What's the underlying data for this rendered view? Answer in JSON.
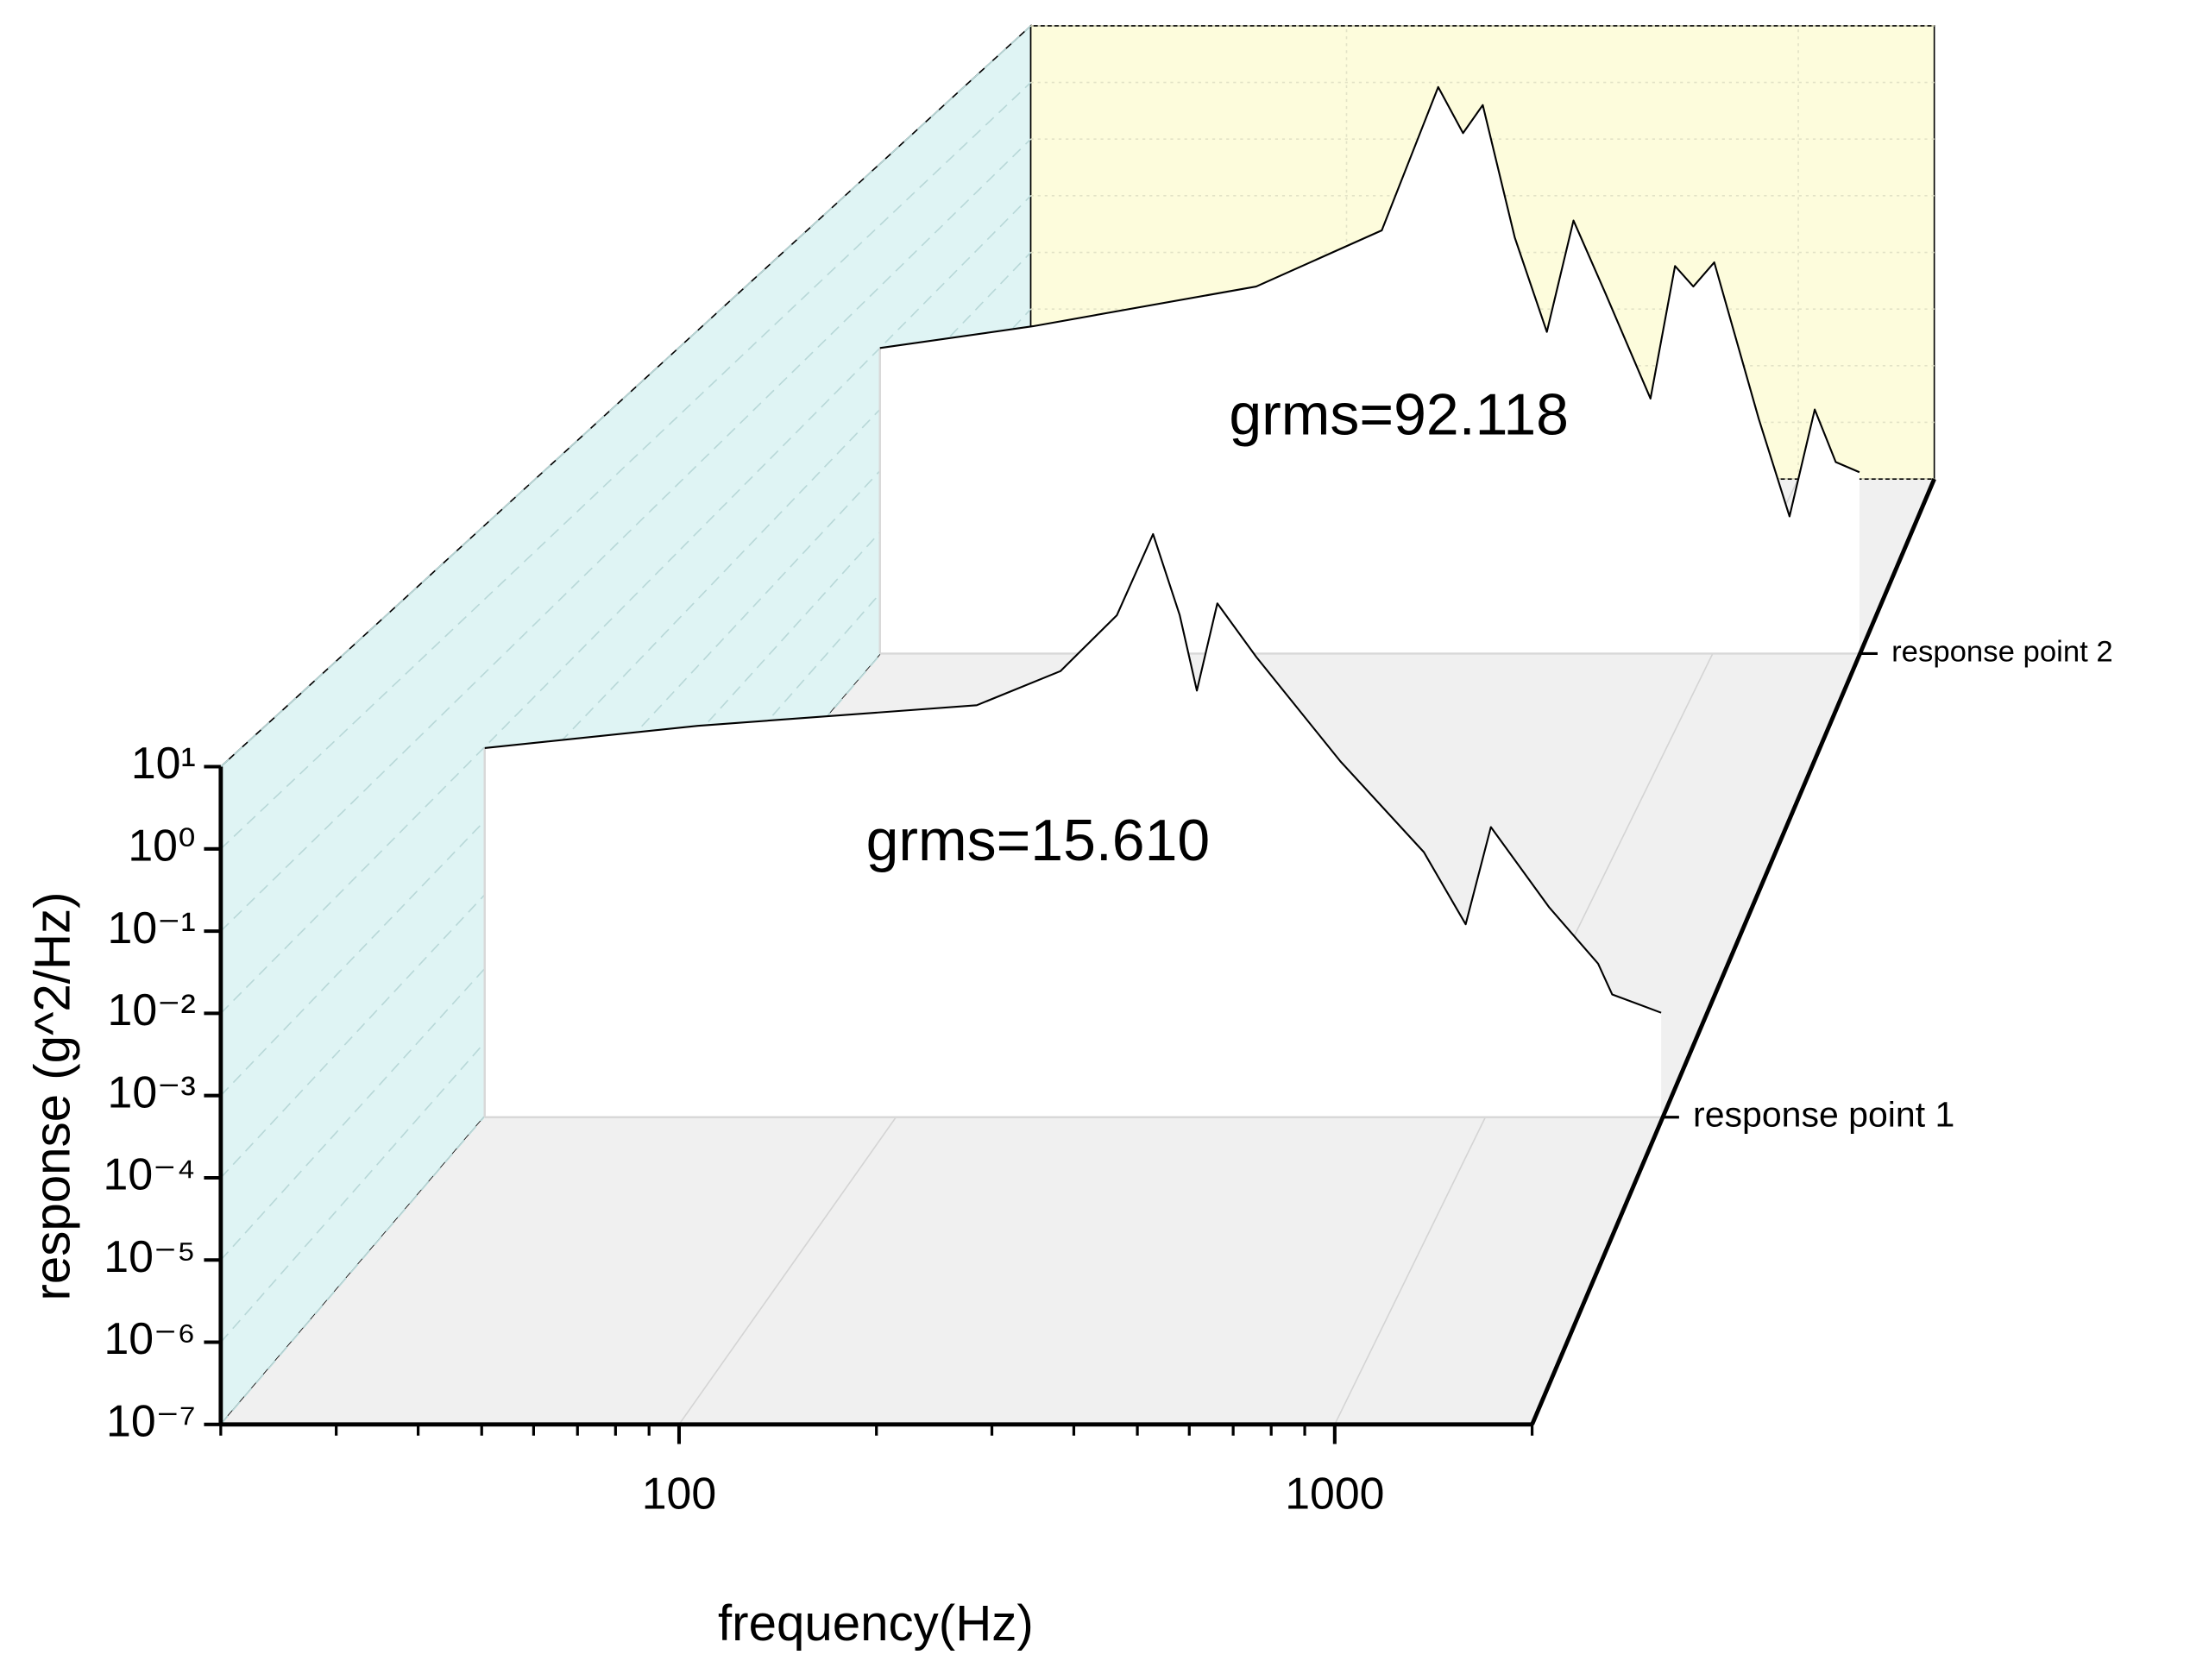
{
  "chart_data": {
    "type": "waterfall",
    "x_label": "frequency(Hz)",
    "y_label": "response (g^2/Hz)",
    "xscale": "log",
    "yscale": "log",
    "xlim": [
      20,
      2000
    ],
    "ylim": [
      1e-07,
      10
    ],
    "xticks": [
      100,
      1000
    ],
    "xminor_ticks": [
      20,
      30,
      40,
      50,
      60,
      70,
      80,
      90,
      200,
      300,
      400,
      500,
      600,
      700,
      800,
      900,
      2000
    ],
    "yticks": [
      {
        "value": 10,
        "label": "10¹"
      },
      {
        "value": 1,
        "label": "10⁰"
      },
      {
        "value": 0.1,
        "label": "10⁻¹"
      },
      {
        "value": 0.01,
        "label": "10⁻²"
      },
      {
        "value": 0.001,
        "label": "10⁻³"
      },
      {
        "value": 0.0001,
        "label": "10⁻⁴"
      },
      {
        "value": 1e-05,
        "label": "10⁻⁵"
      },
      {
        "value": 1e-06,
        "label": "10⁻⁶"
      },
      {
        "value": 1e-07,
        "label": "10⁻⁷"
      }
    ],
    "grid": true,
    "series": [
      {
        "name": "response point 1",
        "color": "#000000",
        "x": [
          20,
          46,
          137,
          190,
          237,
          273,
          303,
          324,
          351,
          409,
          568,
          787,
          927,
          1023,
          1286,
          1556,
          1644,
          1991
        ],
        "values": [
          0.01,
          0.02,
          0.038,
          0.11,
          0.63,
          7.9,
          0.63,
          0.06,
          0.91,
          0.17,
          0.0066,
          0.00039,
          4.1e-05,
          0.00085,
          6.9e-05,
          1.2e-05,
          4.6e-06,
          2.6e-06
        ]
      },
      {
        "name": "response point 2",
        "color": "#000000",
        "x": [
          20,
          41,
          117,
          211,
          275,
          309,
          339,
          394,
          458,
          519,
          603,
          745,
          836,
          911,
          1005,
          1239,
          1431,
          1611,
          1778,
          1987
        ],
        "values": [
          0.0093,
          0.021,
          0.093,
          0.76,
          163,
          29,
          83,
          0.58,
          0.017,
          1.1,
          0.072,
          0.0014,
          0.2,
          0.093,
          0.23,
          0.00065,
          1.7e-05,
          0.00093,
          0.00013,
          8.9e-05
        ]
      }
    ],
    "annotations": [
      {
        "text": "grms=15.610"
      },
      {
        "text": "grms=92.118"
      }
    ]
  }
}
